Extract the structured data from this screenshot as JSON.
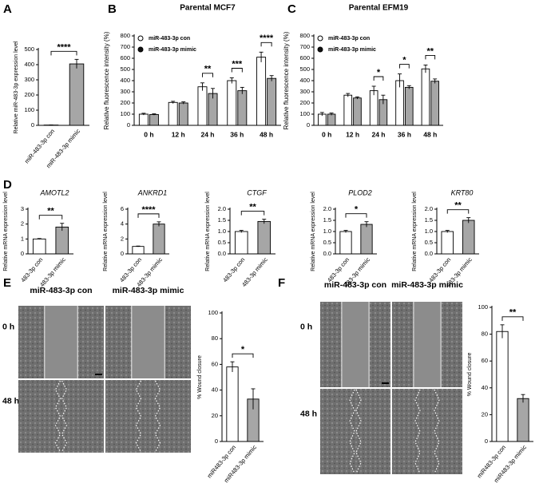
{
  "panel_labels": [
    "A",
    "B",
    "C",
    "D",
    "E",
    "F"
  ],
  "wound_assays": [
    {
      "columns": [
        "miR-483-3p con",
        "miR-483-3p mimic"
      ],
      "rows": [
        "0 h",
        "48 h"
      ]
    },
    {
      "columns": [
        "miR-483-3p con",
        "miR-483-3p mimic"
      ],
      "rows": [
        "0 h",
        "48 h"
      ]
    }
  ],
  "chart_data": [
    {
      "type": "bar",
      "y_label": "Relative miR-483-3p expression level",
      "categories": [
        "miR-483-3p con",
        "miR-483-3p mimic"
      ],
      "values": [
        2,
        405
      ],
      "errors": [
        1,
        30
      ],
      "colors": [
        "#ffffff",
        "#a6a6a6"
      ],
      "ylim": [
        0,
        500
      ],
      "yticks": [
        0,
        100,
        200,
        300,
        400,
        500
      ],
      "significance": "****"
    },
    {
      "type": "grouped-bar",
      "title": "Parental MCF7",
      "y_label": "Relative fluorescence intensity (%)",
      "categories": [
        "0 h",
        "12 h",
        "24 h",
        "36 h",
        "48 h"
      ],
      "series": [
        {
          "name": "miR-483-3p con",
          "color": "#ffffff",
          "values": [
            100,
            205,
            345,
            400,
            610
          ],
          "errors": [
            8,
            10,
            35,
            25,
            45
          ]
        },
        {
          "name": "miR-483-3p mimic",
          "color": "#a6a6a6",
          "values": [
            97,
            200,
            285,
            310,
            420
          ],
          "errors": [
            6,
            10,
            45,
            30,
            25
          ]
        }
      ],
      "ylim": [
        0,
        800
      ],
      "yticks": [
        0,
        100,
        200,
        300,
        400,
        500,
        600,
        700,
        800
      ],
      "significance": [
        null,
        null,
        "**",
        "***",
        "****"
      ]
    },
    {
      "type": "grouped-bar",
      "title": "Parental EFM19",
      "y_label": "Relative fluorescence intensity (%)",
      "categories": [
        "0 h",
        "12 h",
        "24 h",
        "36 h",
        "48 h"
      ],
      "series": [
        {
          "name": "miR-483-3p con",
          "color": "#ffffff",
          "values": [
            100,
            270,
            310,
            400,
            505
          ],
          "errors": [
            15,
            15,
            40,
            60,
            35
          ]
        },
        {
          "name": "miR-483-3p mimic",
          "color": "#a6a6a6",
          "values": [
            100,
            245,
            230,
            340,
            395
          ],
          "errors": [
            10,
            10,
            40,
            15,
            20
          ]
        }
      ],
      "ylim": [
        0,
        800
      ],
      "yticks": [
        0,
        100,
        200,
        300,
        400,
        500,
        600,
        700,
        800
      ],
      "significance": [
        null,
        null,
        "*",
        "*",
        "**"
      ]
    },
    {
      "type": "bar",
      "title": "AMOTL2",
      "y_label": "Relative mRNA expression level",
      "categories": [
        "483-3p con",
        "483-3p mimic"
      ],
      "values": [
        1.0,
        1.8
      ],
      "errors": [
        0.03,
        0.25
      ],
      "colors": [
        "#ffffff",
        "#a6a6a6"
      ],
      "ylim": [
        0,
        3
      ],
      "yticks": [
        0,
        1,
        2,
        3
      ],
      "significance": "**"
    },
    {
      "type": "bar",
      "title": "ANKRD1",
      "y_label": "Relative mRNA expression level",
      "categories": [
        "483-3p con",
        "483-3p mimic"
      ],
      "values": [
        1.0,
        4.0
      ],
      "errors": [
        0.05,
        0.3
      ],
      "colors": [
        "#ffffff",
        "#a6a6a6"
      ],
      "ylim": [
        0,
        6
      ],
      "yticks": [
        0,
        2,
        4,
        6
      ],
      "significance": "****"
    },
    {
      "type": "bar",
      "title": "CTGF",
      "y_label": "Relative mRNA expression level",
      "categories": [
        "483-3p con",
        "483-3p mimic"
      ],
      "values": [
        1.0,
        1.45
      ],
      "errors": [
        0.05,
        0.1
      ],
      "colors": [
        "#ffffff",
        "#a6a6a6"
      ],
      "ylim": [
        0,
        2
      ],
      "yticks": [
        {
          "value": 0,
          "label": "0.0"
        },
        0.5,
        {
          "value": 1,
          "label": "1.0"
        },
        1.5,
        {
          "value": 2,
          "label": "2.0"
        }
      ],
      "significance": "**"
    },
    {
      "type": "bar",
      "title": "PLOD2",
      "y_label": "Relative mRNA expression level",
      "categories": [
        "483-3p con",
        "483-3p mimic"
      ],
      "values": [
        1.0,
        1.32
      ],
      "errors": [
        0.05,
        0.12
      ],
      "colors": [
        "#ffffff",
        "#a6a6a6"
      ],
      "ylim": [
        0,
        2
      ],
      "yticks": [
        {
          "value": 0,
          "label": "0.0"
        },
        0.5,
        {
          "value": 1,
          "label": "1.0"
        },
        1.5,
        {
          "value": 2,
          "label": "2.0"
        }
      ],
      "significance": "*"
    },
    {
      "type": "bar",
      "title": "KRT80",
      "y_label": "Relative mRNA expression level",
      "categories": [
        "483-3p con",
        "483-3p mimic"
      ],
      "values": [
        1.0,
        1.5
      ],
      "errors": [
        0.05,
        0.12
      ],
      "colors": [
        "#ffffff",
        "#a6a6a6"
      ],
      "ylim": [
        0,
        2
      ],
      "yticks": [
        {
          "value": 0,
          "label": "0.0"
        },
        0.5,
        {
          "value": 1,
          "label": "1.0"
        },
        1.5,
        {
          "value": 2,
          "label": "2.0"
        }
      ],
      "significance": "**"
    },
    {
      "type": "bar",
      "y_label": "% Wound closure",
      "categories": [
        "miR483-3p con",
        "miR483-3p mimic"
      ],
      "values": [
        58,
        33
      ],
      "errors": [
        4,
        8
      ],
      "colors": [
        "#ffffff",
        "#a6a6a6"
      ],
      "ylim": [
        0,
        100
      ],
      "yticks": [
        0,
        20,
        40,
        60,
        80,
        100
      ],
      "significance": "*"
    },
    {
      "type": "bar",
      "y_label": "% Wound closure",
      "categories": [
        "miR483-3p con",
        "miR483-3p mimic"
      ],
      "values": [
        82,
        32
      ],
      "errors": [
        5,
        3
      ],
      "colors": [
        "#ffffff",
        "#a6a6a6"
      ],
      "ylim": [
        0,
        100
      ],
      "yticks": [
        0,
        20,
        40,
        60,
        80,
        100
      ],
      "significance": "**"
    }
  ]
}
